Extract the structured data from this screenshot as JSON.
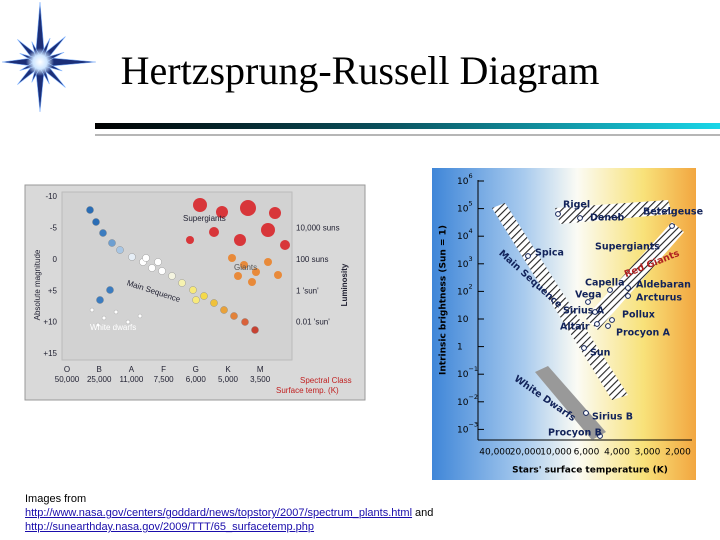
{
  "title": "Hertzsprung-Russell Diagram",
  "left_diagram": {
    "y_axis_title": "Absolute magnitude",
    "y_ticks": [
      "-10",
      "-5",
      "0",
      "+5",
      "+10",
      "+15"
    ],
    "luminosity_title": "Luminosity",
    "luminosity_labels": [
      "10,000 suns",
      "100 suns",
      "1 'sun'",
      "0.01 'sun'"
    ],
    "spectral_classes": [
      "O",
      "B",
      "A",
      "F",
      "G",
      "K",
      "M"
    ],
    "temperatures": [
      "50,000",
      "25,000",
      "11,000",
      "7,500",
      "6,000",
      "5,000",
      "3,500"
    ],
    "spectral_class_title": "Spectral Class",
    "temperature_title": "Surface temp. (K)",
    "regions": {
      "supergiants": "Supergiants",
      "giants": "Giants",
      "main_sequence": "Main Sequence",
      "white_dwarfs": "White dwarfs"
    }
  },
  "right_diagram": {
    "y_axis_title": "Intrinsic brightness (Sun = 1)",
    "y_ticks": [
      {
        "base": "10",
        "exp": "6"
      },
      {
        "base": "10",
        "exp": "5"
      },
      {
        "base": "10",
        "exp": "4"
      },
      {
        "base": "10",
        "exp": "3"
      },
      {
        "base": "10",
        "exp": "2"
      },
      {
        "base": "10"
      },
      {
        "base": "1"
      },
      {
        "base": "10",
        "exp": "−1"
      },
      {
        "base": "10",
        "exp": "−2"
      },
      {
        "base": "10",
        "exp": "−3"
      }
    ],
    "x_ticks": [
      "40,000",
      "20,000",
      "10,000",
      "6,000",
      "4,000",
      "3,000",
      "2,000"
    ],
    "x_axis_title": "Stars' surface temperature (K)",
    "regions": {
      "supergiants": "Supergiants",
      "main_sequence": "Main Sequence",
      "red_giants": "Red Giants",
      "white_dwarfs": "White Dwarfs"
    },
    "stars": [
      "Rigel",
      "Deneb",
      "Betelgeuse",
      "Spica",
      "Capella",
      "Vega",
      "Aldebaran",
      "Arcturus",
      "Sirius A",
      "Pollux",
      "Altair",
      "Procyon A",
      "Sun",
      "Sirius B",
      "Procyon B"
    ]
  },
  "caption": {
    "prefix": "Images from",
    "link1": "http://www.nasa.gov/centers/goddard/news/topstory/2007/spectrum_plants.html",
    "joiner": "and",
    "link2": "http://sunearthday.nasa.gov/2009/TTT/65_surfacetemp.php"
  }
}
